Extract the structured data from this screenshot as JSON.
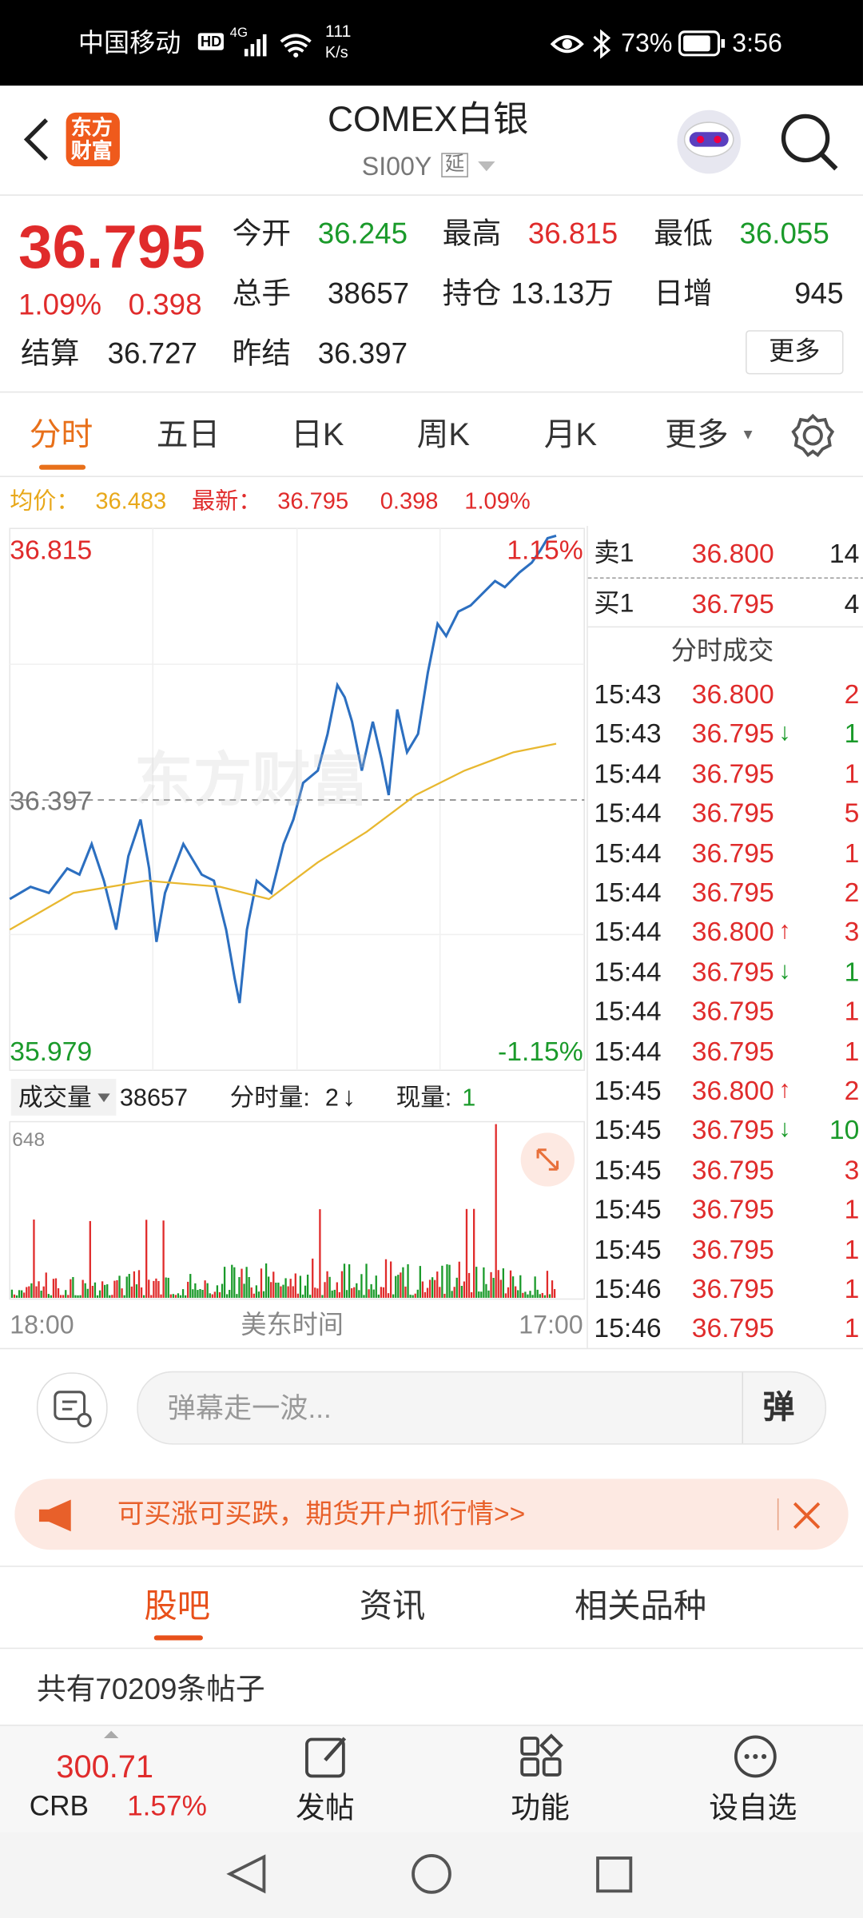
{
  "status_bar": {
    "carrier": "中国移动",
    "network": "4G",
    "speed": "111",
    "speed_unit": "K/s",
    "battery": "73%",
    "time": "3:56"
  },
  "header": {
    "logo_lines": [
      "东方",
      "财富"
    ],
    "title": "COMEX白银",
    "code": "SI00Y",
    "tag": "延"
  },
  "quote": {
    "price": "36.795",
    "change_pct": "1.09%",
    "change": "0.398",
    "fields": [
      {
        "label": "今开",
        "value": "36.245"
      },
      {
        "label": "最高",
        "value": "36.815"
      },
      {
        "label": "最低",
        "value": "36.055"
      },
      {
        "label": "总手",
        "value": "38657"
      },
      {
        "label": "持仓",
        "value": "13.13万"
      },
      {
        "label": "日增",
        "value": "945"
      },
      {
        "label": "结算",
        "value": "36.727"
      },
      {
        "label": "昨结",
        "value": "36.397"
      }
    ],
    "more": "更多"
  },
  "tabs": {
    "items": [
      "分时",
      "五日",
      "日K",
      "周K",
      "月K",
      "更多"
    ],
    "active": 0
  },
  "info": {
    "avg_label": "均价：",
    "avg": "36.483",
    "last_label": "最新：",
    "last": "36.795",
    "change": "0.398",
    "change_pct": "1.09%"
  },
  "chart": {
    "high": "36.815",
    "high_pct": "1.15%",
    "base": "36.397",
    "low": "35.979",
    "low_pct": "-1.15%",
    "watermark": "东方财富"
  },
  "volume": {
    "selector": "成交量",
    "total": "38657",
    "interval_label": "分时量:",
    "interval": "2",
    "interval_arrow": "↓",
    "current_label": "现量:",
    "current": "1",
    "max": "648",
    "axis": [
      "18:00",
      "美东时间",
      "17:00"
    ]
  },
  "order_book": {
    "ask": {
      "label": "卖1",
      "price": "36.800",
      "volume": "14"
    },
    "bid": {
      "label": "买1",
      "price": "36.795",
      "volume": "4"
    }
  },
  "trades": {
    "title": "分时成交",
    "rows": [
      {
        "time": "15:43",
        "price": "36.800",
        "volume": "2"
      },
      {
        "time": "15:43",
        "price": "36.795",
        "arrow": "↓",
        "volume": "1"
      },
      {
        "time": "15:44",
        "price": "36.795",
        "volume": "1"
      },
      {
        "time": "15:44",
        "price": "36.795",
        "volume": "5"
      },
      {
        "time": "15:44",
        "price": "36.795",
        "volume": "1"
      },
      {
        "time": "15:44",
        "price": "36.795",
        "volume": "2"
      },
      {
        "time": "15:44",
        "price": "36.800",
        "arrow": "↑",
        "volume": "3"
      },
      {
        "time": "15:44",
        "price": "36.795",
        "arrow": "↓",
        "volume": "1"
      },
      {
        "time": "15:44",
        "price": "36.795",
        "volume": "1"
      },
      {
        "time": "15:44",
        "price": "36.795",
        "volume": "1"
      },
      {
        "time": "15:45",
        "price": "36.800",
        "arrow": "↑",
        "volume": "2"
      },
      {
        "time": "15:45",
        "price": "36.795",
        "arrow": "↓",
        "volume": "10"
      },
      {
        "time": "15:45",
        "price": "36.795",
        "volume": "3"
      },
      {
        "time": "15:45",
        "price": "36.795",
        "volume": "1"
      },
      {
        "time": "15:45",
        "price": "36.795",
        "volume": "1"
      },
      {
        "time": "15:46",
        "price": "36.795",
        "volume": "1"
      },
      {
        "time": "15:46",
        "price": "36.795",
        "volume": "1"
      }
    ]
  },
  "comment": {
    "placeholder": "弹幕走一波...",
    "button": "弹"
  },
  "banner": {
    "text": "可买涨可买跌，期货开户抓行情>>"
  },
  "section_tabs": {
    "items": [
      "股吧",
      "资讯",
      "相关品种"
    ],
    "active": 0
  },
  "post_count": "共有70209条帖子",
  "bottom_bar": {
    "index_value": "300.71",
    "index_name": "CRB",
    "index_change": "1.57%",
    "actions": [
      "发帖",
      "功能",
      "设自选"
    ]
  }
}
